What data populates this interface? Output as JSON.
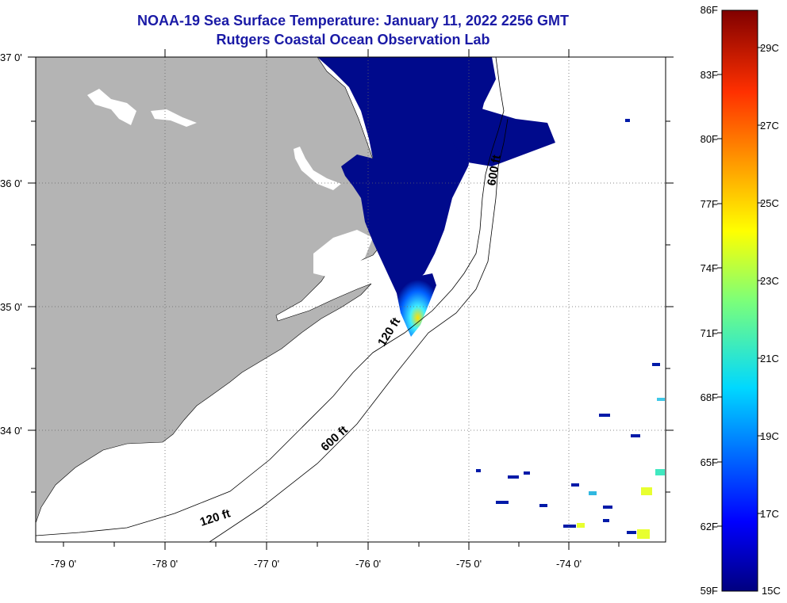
{
  "title": {
    "line1": "NOAA-19 Sea Surface Temperature:  January 11, 2022 2256 GMT",
    "line2": "Rutgers Coastal Ocean Observation Lab"
  },
  "map": {
    "lat_labels": [
      "37 0'",
      "36 0'",
      "35 0'",
      "34 0'"
    ],
    "lon_labels": [
      "-79 0'",
      "-78 0'",
      "-77 0'",
      "-76 0'",
      "-75 0'",
      "-74 0'"
    ],
    "contours": [
      "120 ft",
      "600 ft",
      "120 ft",
      "600 ft"
    ],
    "colors": {
      "land": "#b4b4b4",
      "ocean": "#ffffff",
      "cold_water": "#000a8c"
    }
  },
  "colorbar": {
    "f_labels": [
      "86F",
      "83F",
      "80F",
      "77F",
      "74F",
      "71F",
      "68F",
      "65F",
      "62F",
      "59F"
    ],
    "c_labels": [
      "29C",
      "27C",
      "25C",
      "23C",
      "21C",
      "19C",
      "17C",
      "15C"
    ],
    "range_f": [
      59,
      86
    ],
    "range_c": [
      15,
      30
    ]
  }
}
